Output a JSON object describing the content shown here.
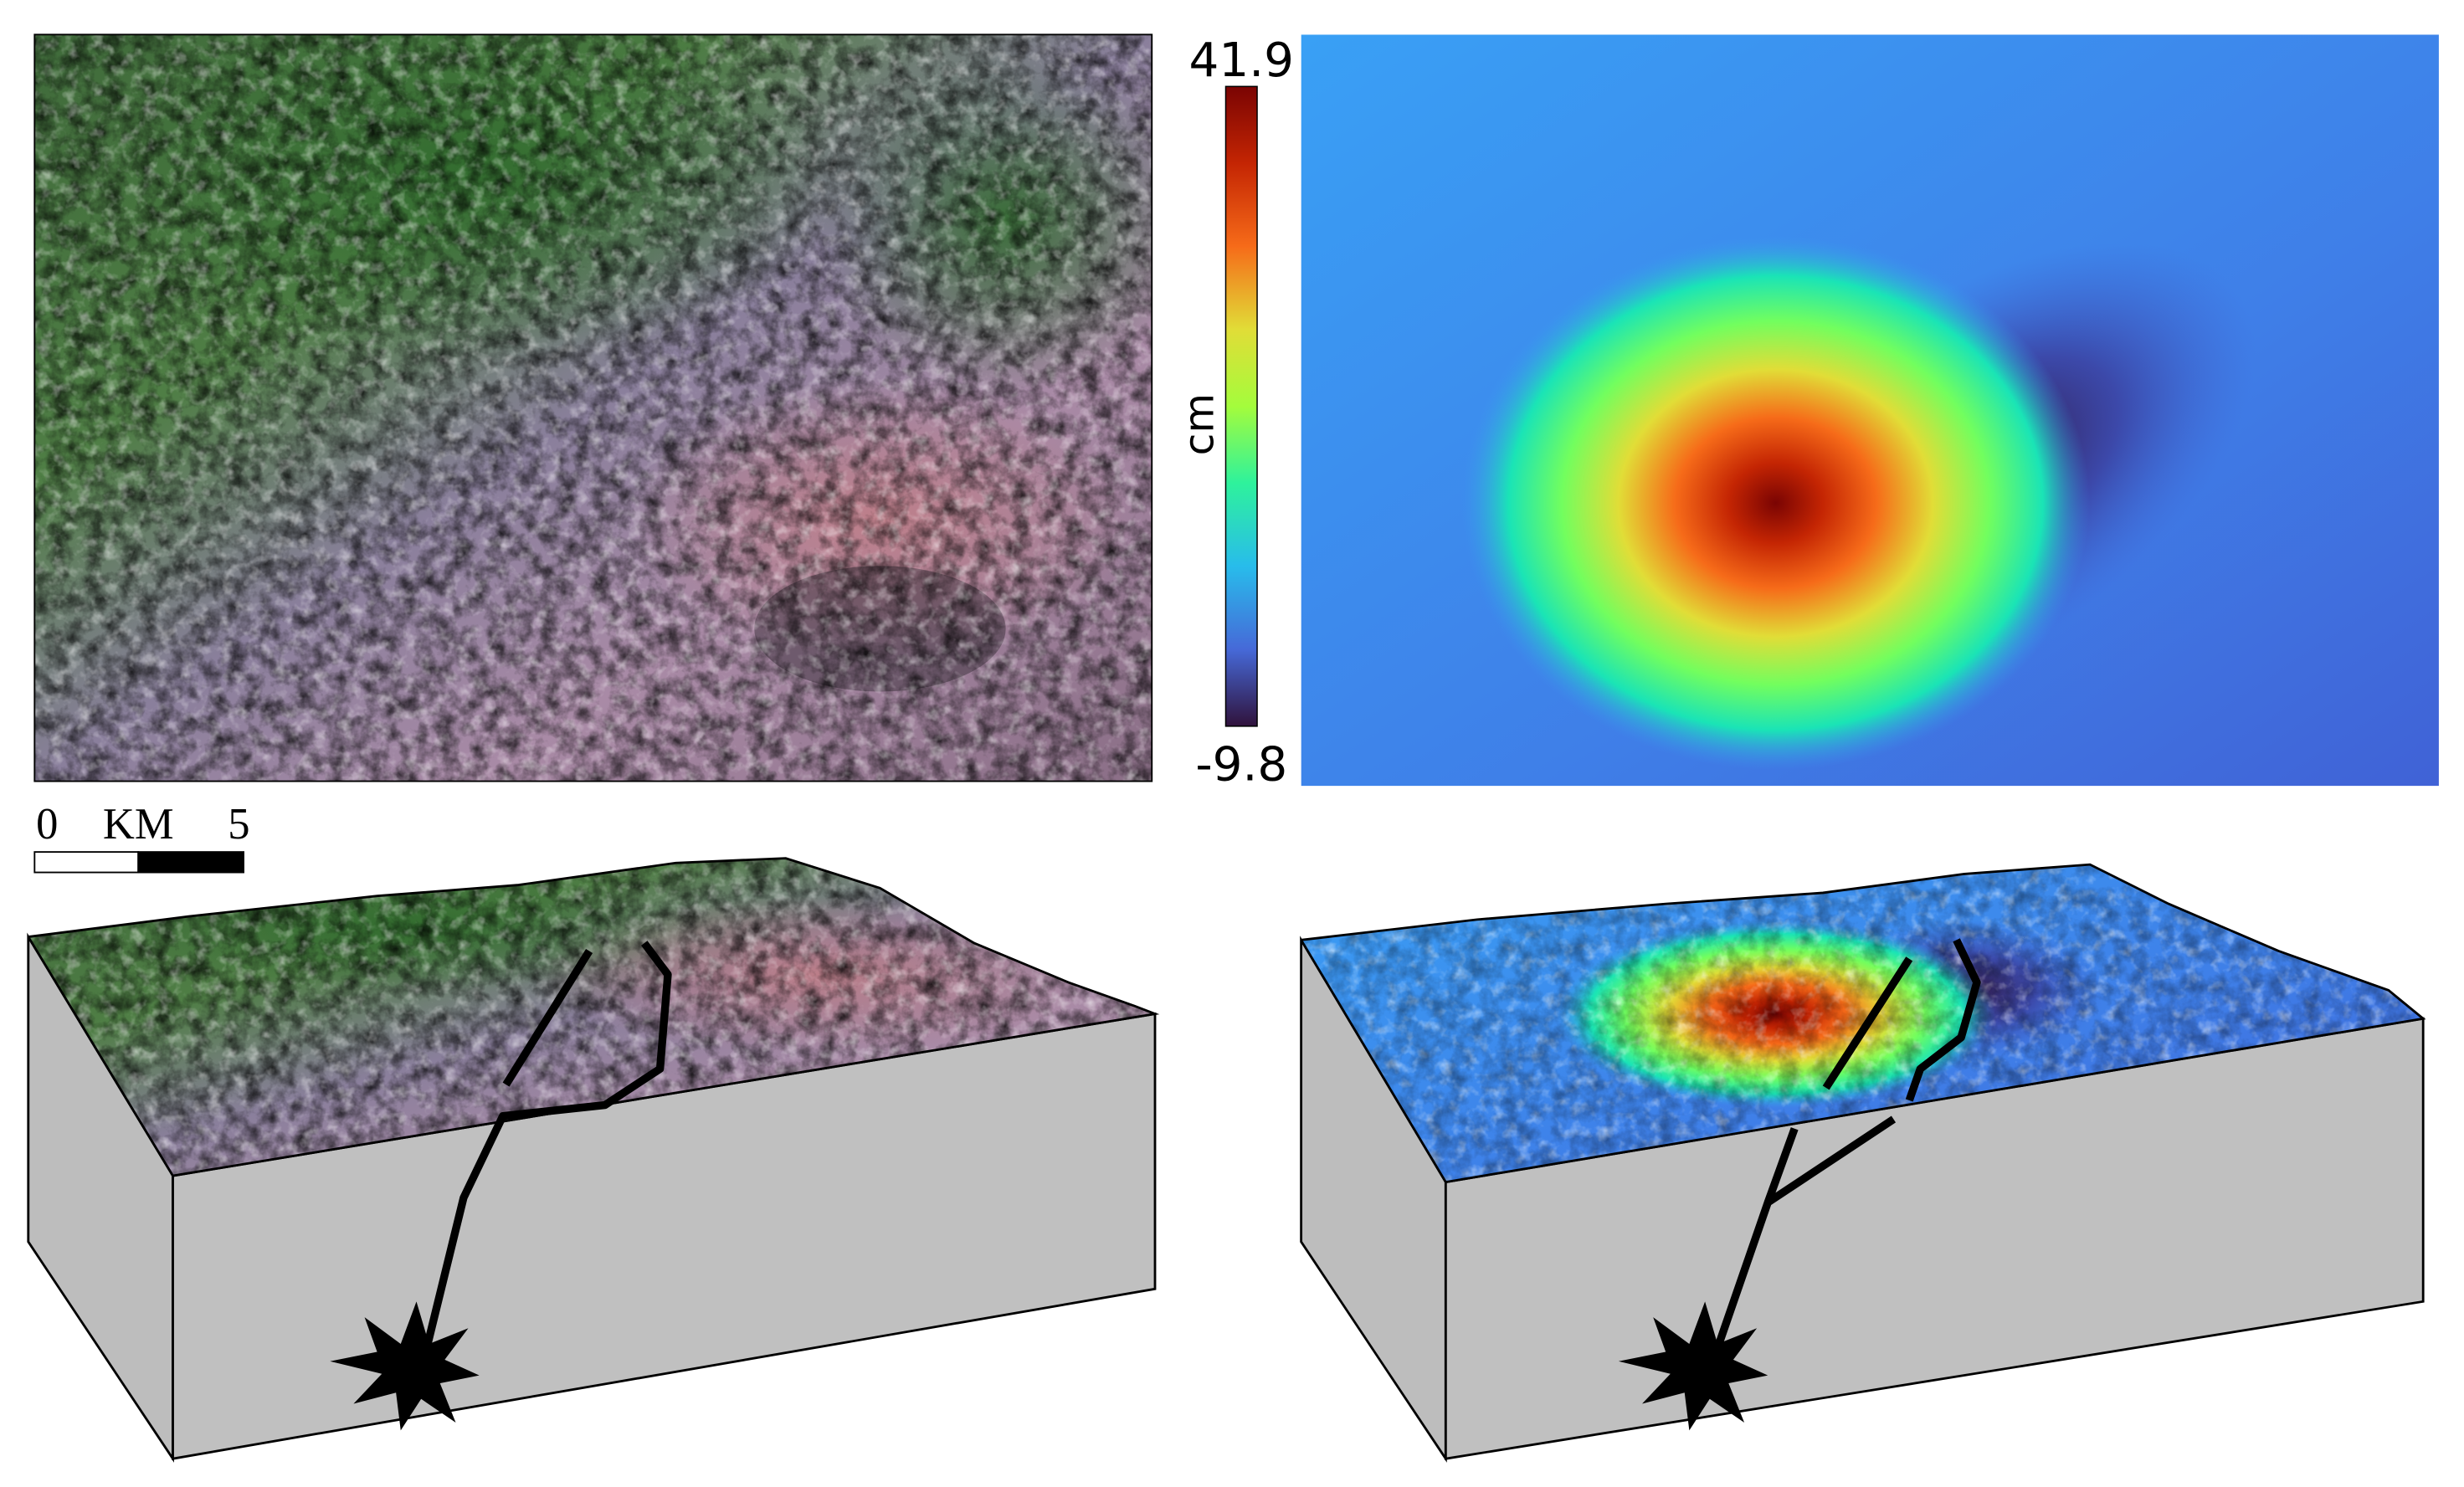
{
  "colorbar": {
    "max": 41.9,
    "min": -9.8,
    "unit": "cm"
  },
  "scale_bar": {
    "start": 0,
    "unit": "KM",
    "end": 5
  }
}
